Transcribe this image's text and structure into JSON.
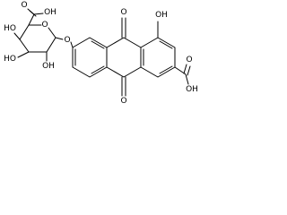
{
  "atoms": [
    {
      "label": "O"
    },
    {
      "label": "OH"
    },
    {
      "label": "HO"
    },
    {
      "label": "O"
    },
    {
      "label": "O"
    },
    {
      "label": "HO"
    },
    {
      "label": "OH"
    },
    {
      "label": "O"
    },
    {
      "label": "OH"
    },
    {
      "label": "O"
    },
    {
      "label": "O"
    },
    {
      "label": "OH"
    }
  ]
}
